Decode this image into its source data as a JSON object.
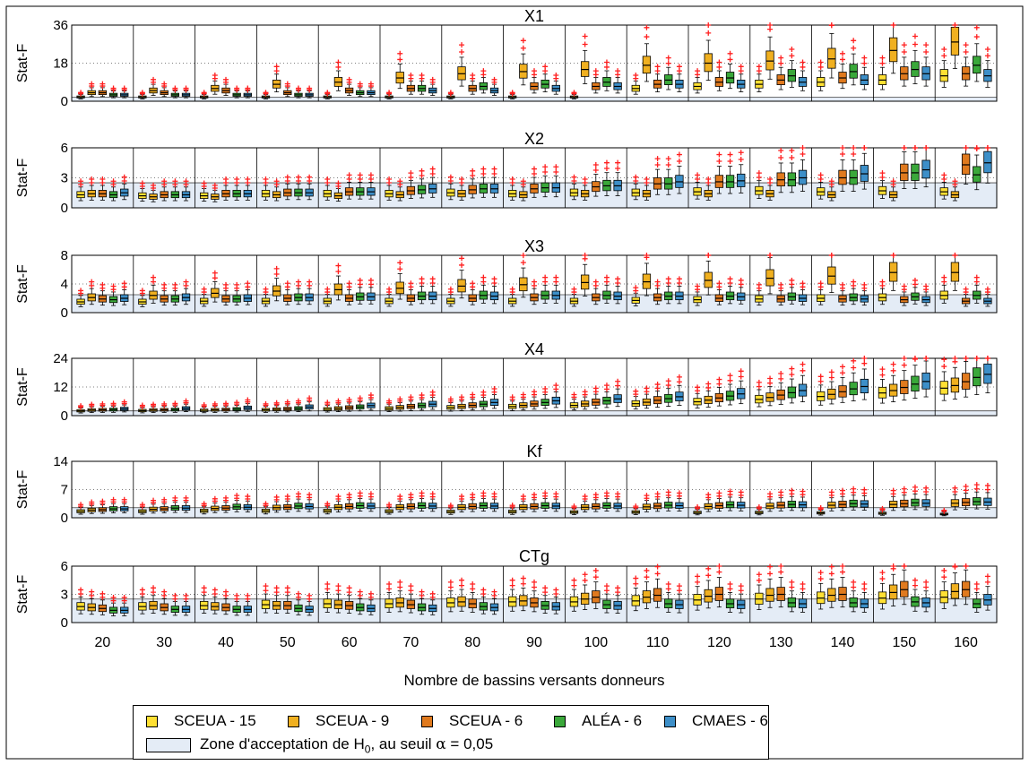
{
  "colors": {
    "SCEUA - 15": "#ffe033",
    "SCEUA - 9": "#f0b020",
    "SCEUA - 6": "#e07a1e",
    "ALÉA - 6": "#3aa83a",
    "CMAES - 6": "#3d8fc8",
    "outlier": "#ff1f1f",
    "zone": "#e4ecf6"
  },
  "legend": {
    "items": [
      "SCEUA - 15",
      "SCEUA - 9",
      "SCEUA - 6",
      "ALÉA - 6",
      "CMAES - 6"
    ],
    "zone_text": "Zone d'acceptation de H",
    "zone_sub": "0",
    "zone_tail": ", au seuil ",
    "alpha_symbol": "α",
    "alpha_value": " = 0,05"
  },
  "chart_data": {
    "type": "box",
    "xlabel": "Nombre de bassins versants donneurs",
    "categories": [
      "20",
      "30",
      "40",
      "50",
      "60",
      "70",
      "80",
      "90",
      "100",
      "110",
      "120",
      "130",
      "140",
      "150",
      "160"
    ],
    "series_order": [
      "SCEUA - 15",
      "SCEUA - 9",
      "SCEUA - 6",
      "ALÉA - 6",
      "CMAES - 6"
    ],
    "grid": true,
    "panels": [
      {
        "title": "X1",
        "ylabel": "Stat-F",
        "ylim": [
          0,
          36
        ],
        "yticks": [
          0,
          18,
          36
        ],
        "h0_threshold": 1.9,
        "medians": [
          [
            2,
            4,
            4,
            3,
            3
          ],
          [
            2,
            5,
            4,
            3,
            3
          ],
          [
            2,
            6,
            5,
            3,
            3
          ],
          [
            2,
            8,
            4,
            3,
            3
          ],
          [
            2,
            9,
            5,
            4,
            4
          ],
          [
            2,
            11,
            6,
            6,
            5
          ],
          [
            2,
            13,
            6,
            7,
            5
          ],
          [
            2,
            14,
            7,
            8,
            6
          ],
          [
            2,
            15,
            7,
            9,
            7
          ],
          [
            6,
            17,
            8,
            10,
            8
          ],
          [
            7,
            18,
            9,
            11,
            8
          ],
          [
            8,
            19,
            10,
            12,
            9
          ],
          [
            9,
            20,
            11,
            14,
            10
          ],
          [
            10,
            24,
            13,
            15,
            13
          ],
          [
            12,
            28,
            13,
            17,
            12
          ]
        ]
      },
      {
        "title": "X2",
        "ylabel": "Stat-F",
        "ylim": [
          0,
          6
        ],
        "yticks": [
          0,
          3,
          6
        ],
        "h0_threshold": 2.5,
        "medians": [
          [
            1.3,
            1.4,
            1.4,
            1.3,
            1.5
          ],
          [
            1.2,
            1.1,
            1.3,
            1.3,
            1.3
          ],
          [
            1.2,
            1.1,
            1.4,
            1.4,
            1.4
          ],
          [
            1.4,
            1.3,
            1.5,
            1.5,
            1.5
          ],
          [
            1.4,
            1.2,
            1.6,
            1.6,
            1.6
          ],
          [
            1.4,
            1.3,
            1.7,
            1.8,
            1.9
          ],
          [
            1.5,
            1.4,
            1.8,
            1.9,
            1.9
          ],
          [
            1.4,
            1.3,
            1.9,
            2.0,
            2.0
          ],
          [
            1.5,
            1.4,
            2.1,
            2.2,
            2.2
          ],
          [
            1.5,
            1.4,
            2.4,
            2.4,
            2.6
          ],
          [
            1.6,
            1.4,
            2.6,
            2.6,
            2.7
          ],
          [
            1.7,
            1.4,
            2.8,
            2.8,
            3.0
          ],
          [
            1.6,
            1.3,
            3.0,
            3.0,
            3.4
          ],
          [
            1.7,
            1.3,
            3.5,
            3.5,
            3.8
          ],
          [
            1.6,
            1.3,
            4.3,
            3.3,
            4.5
          ]
        ]
      },
      {
        "title": "X3",
        "ylabel": "Stat-F",
        "ylim": [
          0,
          8
        ],
        "yticks": [
          0,
          4,
          8
        ],
        "h0_threshold": 2.5,
        "medians": [
          [
            1.5,
            2.1,
            1.9,
            1.8,
            2.0
          ],
          [
            1.5,
            2.4,
            1.9,
            1.9,
            2.1
          ],
          [
            1.6,
            2.7,
            1.9,
            1.9,
            2.0
          ],
          [
            1.6,
            3.0,
            2.0,
            2.1,
            2.1
          ],
          [
            1.6,
            3.2,
            2.0,
            2.2,
            2.2
          ],
          [
            1.6,
            3.4,
            2.0,
            2.3,
            2.3
          ],
          [
            1.6,
            3.7,
            2.0,
            2.4,
            2.3
          ],
          [
            1.6,
            3.9,
            2.1,
            2.4,
            2.4
          ],
          [
            1.6,
            4.2,
            2.1,
            2.4,
            2.3
          ],
          [
            1.7,
            4.3,
            2.1,
            2.3,
            2.3
          ],
          [
            1.8,
            4.5,
            2.0,
            2.3,
            2.2
          ],
          [
            1.9,
            4.8,
            1.9,
            2.2,
            2.0
          ],
          [
            2.0,
            5.1,
            1.9,
            2.1,
            1.9
          ],
          [
            2.1,
            5.6,
            1.8,
            2.2,
            1.8
          ],
          [
            2.4,
            5.6,
            1.6,
            2.4,
            1.6
          ]
        ]
      },
      {
        "title": "X4",
        "ylabel": "Stat-F",
        "ylim": [
          0,
          24
        ],
        "yticks": [
          0,
          12,
          24
        ],
        "h0_threshold": 2.0,
        "medians": [
          [
            2.0,
            2.3,
            2.4,
            2.5,
            2.8
          ],
          [
            2.1,
            2.3,
            2.4,
            2.5,
            3.0
          ],
          [
            2.2,
            2.4,
            2.5,
            2.7,
            3.2
          ],
          [
            2.4,
            2.6,
            2.8,
            3.0,
            3.6
          ],
          [
            2.7,
            3.0,
            3.3,
            3.6,
            4.2
          ],
          [
            3.0,
            3.4,
            3.8,
            4.2,
            4.8
          ],
          [
            3.4,
            3.8,
            4.3,
            4.8,
            5.5
          ],
          [
            3.8,
            4.3,
            4.9,
            5.5,
            6.2
          ],
          [
            4.3,
            4.9,
            5.6,
            6.2,
            7.0
          ],
          [
            5.0,
            5.6,
            6.4,
            7.1,
            7.9
          ],
          [
            5.8,
            6.5,
            7.4,
            8.2,
            9.1
          ],
          [
            6.8,
            7.6,
            8.6,
            9.6,
            10.5
          ],
          [
            8.0,
            8.9,
            10.0,
            11.2,
            12.2
          ],
          [
            9.5,
            10.5,
            11.8,
            13.2,
            14.3
          ],
          [
            11.5,
            12.6,
            14.2,
            16.0,
            17.3
          ]
        ]
      },
      {
        "title": "Kf",
        "ylabel": "Stat-F",
        "ylim": [
          0,
          14
        ],
        "yticks": [
          0,
          7,
          14
        ],
        "h0_threshold": 2.5,
        "medians": [
          [
            1.6,
            1.9,
            2.0,
            2.2,
            2.2
          ],
          [
            1.6,
            2.1,
            2.2,
            2.4,
            2.4
          ],
          [
            1.7,
            2.3,
            2.4,
            2.7,
            2.6
          ],
          [
            1.7,
            2.5,
            2.6,
            2.9,
            2.8
          ],
          [
            1.7,
            2.6,
            2.8,
            3.0,
            2.9
          ],
          [
            1.6,
            2.6,
            2.8,
            3.0,
            2.9
          ],
          [
            1.5,
            2.6,
            2.8,
            3.0,
            2.9
          ],
          [
            1.5,
            2.6,
            2.8,
            3.0,
            2.9
          ],
          [
            1.4,
            2.6,
            2.8,
            3.0,
            2.9
          ],
          [
            1.4,
            2.7,
            2.9,
            3.1,
            3.0
          ],
          [
            1.3,
            2.8,
            3.0,
            3.2,
            3.1
          ],
          [
            1.3,
            2.9,
            3.1,
            3.3,
            3.2
          ],
          [
            1.2,
            3.1,
            3.3,
            3.5,
            3.4
          ],
          [
            1.1,
            3.3,
            3.5,
            3.7,
            3.6
          ],
          [
            0.9,
            3.6,
            3.8,
            4.0,
            3.9
          ]
        ]
      },
      {
        "title": "CTg",
        "ylabel": "Stat-F",
        "ylim": [
          0,
          6
        ],
        "yticks": [
          0,
          3,
          6
        ],
        "h0_threshold": 2.5,
        "medians": [
          [
            1.7,
            1.6,
            1.5,
            1.3,
            1.3
          ],
          [
            1.7,
            1.8,
            1.6,
            1.4,
            1.4
          ],
          [
            1.8,
            1.7,
            1.6,
            1.4,
            1.4
          ],
          [
            1.9,
            1.8,
            1.8,
            1.5,
            1.4
          ],
          [
            2.0,
            1.9,
            1.8,
            1.6,
            1.5
          ],
          [
            2.0,
            2.1,
            1.9,
            1.6,
            1.5
          ],
          [
            2.1,
            2.2,
            2.0,
            1.7,
            1.6
          ],
          [
            2.2,
            2.3,
            2.1,
            1.8,
            1.7
          ],
          [
            2.2,
            2.5,
            2.7,
            1.9,
            1.8
          ],
          [
            2.3,
            2.7,
            2.9,
            2.0,
            1.9
          ],
          [
            2.4,
            2.8,
            3.0,
            2.0,
            1.9
          ],
          [
            2.5,
            2.9,
            3.0,
            2.1,
            2.0
          ],
          [
            2.6,
            2.9,
            3.0,
            2.1,
            2.0
          ],
          [
            2.6,
            3.2,
            3.5,
            2.2,
            2.1
          ],
          [
            2.7,
            3.3,
            3.5,
            2.0,
            2.4
          ]
        ]
      }
    ]
  }
}
